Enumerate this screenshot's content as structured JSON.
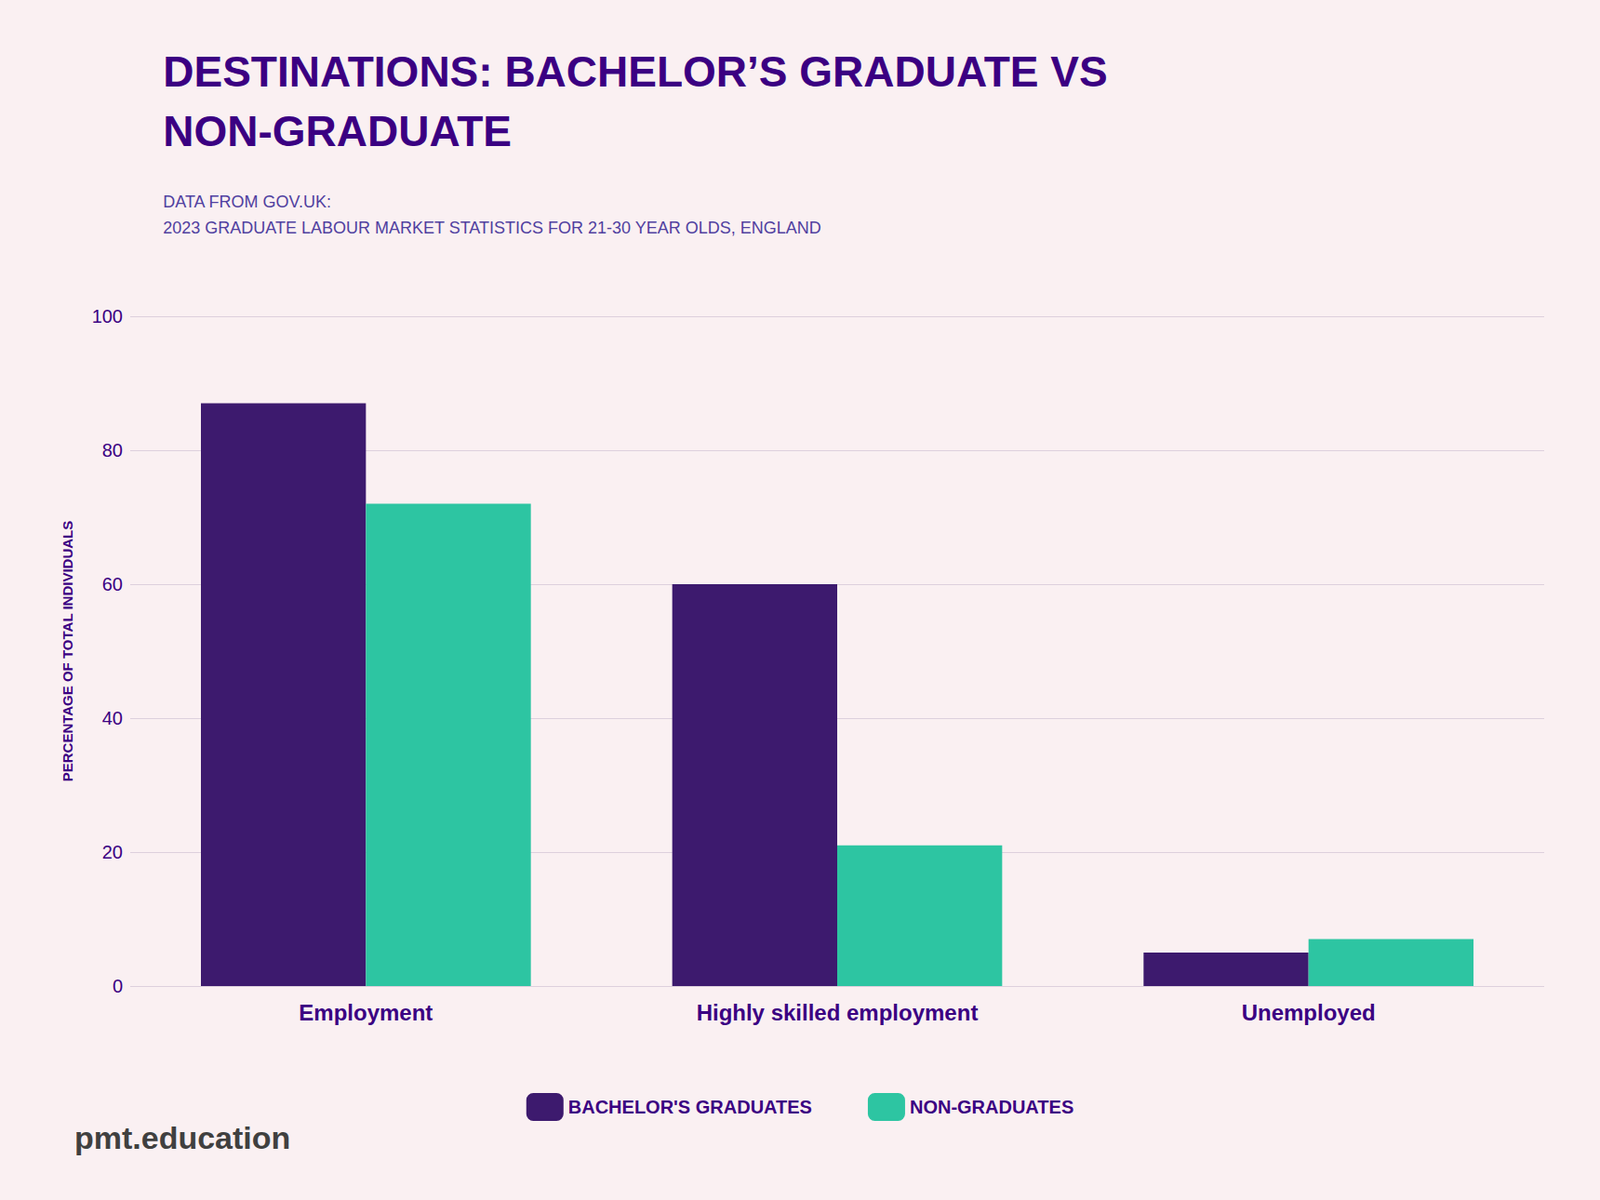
{
  "chart_data": {
    "type": "bar",
    "title": "DESTINATIONS: BACHELOR’S GRADUATE VS\nNON-GRADUATE",
    "subtitle": "DATA FROM GOV.UK:\n2023 GRADUATE LABOUR MARKET STATISTICS FOR 21-30 YEAR OLDS, ENGLAND",
    "categories": [
      "Employment",
      "Highly skilled employment",
      "Unemployed"
    ],
    "series": [
      {
        "name": "BACHELOR'S GRADUATES",
        "color": "#3D1A6E",
        "values": [
          87,
          60,
          5
        ]
      },
      {
        "name": "NON-GRADUATES",
        "color": "#2DC5A2",
        "values": [
          72,
          21,
          7
        ]
      }
    ],
    "ylabel": "PERCENTAGE OF TOTAL INDIVIDUALS",
    "ylim": [
      0,
      100
    ],
    "yticks": [
      0,
      20,
      40,
      60,
      80,
      100
    ],
    "grid": true,
    "legend": "bottom",
    "annotations": [
      "pmt.education"
    ]
  }
}
